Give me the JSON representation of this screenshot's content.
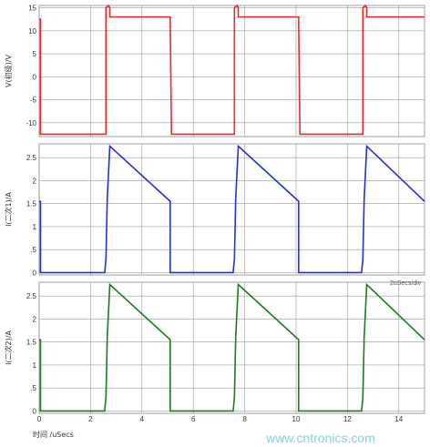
{
  "chart_data": [
    {
      "type": "line",
      "ylabel": "V(初级)/V",
      "ylim": [
        -13,
        15.5
      ],
      "xlim": [
        0,
        15
      ],
      "grid": true,
      "y_ticks": [
        "-10",
        "-5",
        "0",
        "5",
        "10",
        "15"
      ],
      "color": "#e8282d",
      "series": [
        {
          "x": [
            0,
            0.05,
            0.05,
            2.6,
            2.6,
            2.7,
            2.75,
            2.75,
            5.1,
            5.1,
            5.15,
            5.15,
            7.6,
            7.6,
            7.7,
            7.75,
            7.75,
            10.1,
            10.1,
            10.15,
            10.15,
            12.6,
            12.6,
            12.7,
            12.75,
            12.75,
            15
          ],
          "y": [
            12.5,
            12.5,
            -12.5,
            -12.5,
            15,
            15.5,
            15,
            13,
            13,
            12,
            -12.5,
            -12.5,
            -12.5,
            15,
            15.5,
            15,
            13,
            13,
            12,
            -12.5,
            -12.5,
            -12.5,
            15,
            15.5,
            15,
            13,
            13
          ]
        }
      ]
    },
    {
      "type": "line",
      "ylabel": "I(二次1)/A",
      "ylim": [
        -0.05,
        2.8
      ],
      "xlim": [
        0,
        15
      ],
      "grid": true,
      "y_ticks": [
        "0",
        ".5",
        "1",
        "1.5",
        "2",
        "2.5"
      ],
      "color": "#2331d8",
      "series": [
        {
          "x": [
            0,
            0.05,
            0.05,
            2.55,
            2.6,
            2.65,
            2.75,
            5.1,
            5.1,
            5.15,
            7.55,
            7.6,
            7.65,
            7.75,
            10.1,
            10.1,
            10.15,
            12.55,
            12.6,
            12.65,
            12.75,
            15
          ],
          "y": [
            1.55,
            1.55,
            0,
            0,
            0.3,
            1.6,
            2.75,
            1.55,
            0,
            0,
            0,
            0.3,
            1.6,
            2.75,
            1.55,
            0,
            0,
            0,
            0.3,
            1.6,
            2.75,
            1.55
          ]
        }
      ]
    },
    {
      "type": "line",
      "ylabel": "I(二次2)/A",
      "ylim": [
        -0.05,
        2.8
      ],
      "xlim": [
        0,
        15
      ],
      "grid": true,
      "y_ticks": [
        "0",
        ".5",
        "1",
        "1.5",
        "2",
        "2.5"
      ],
      "x_ticks": [
        "0",
        "2",
        "4",
        "6",
        "8",
        "10",
        "12",
        "14"
      ],
      "xlabel": "时间 /uSecs",
      "color": "#1e7a22",
      "series": [
        {
          "x": [
            0,
            0.05,
            0.05,
            2.55,
            2.6,
            2.65,
            2.75,
            5.1,
            5.1,
            5.15,
            7.55,
            7.6,
            7.65,
            7.75,
            10.1,
            10.1,
            10.15,
            12.55,
            12.6,
            12.65,
            12.75,
            15
          ],
          "y": [
            1.55,
            1.55,
            0,
            0,
            0.3,
            1.6,
            2.75,
            1.55,
            0,
            0,
            0,
            0.3,
            1.6,
            2.75,
            1.55,
            0,
            0,
            0,
            0.3,
            1.6,
            2.75,
            1.55
          ]
        }
      ]
    }
  ],
  "div_note": "2uSecs/div",
  "watermark": "www.cntronics.com"
}
